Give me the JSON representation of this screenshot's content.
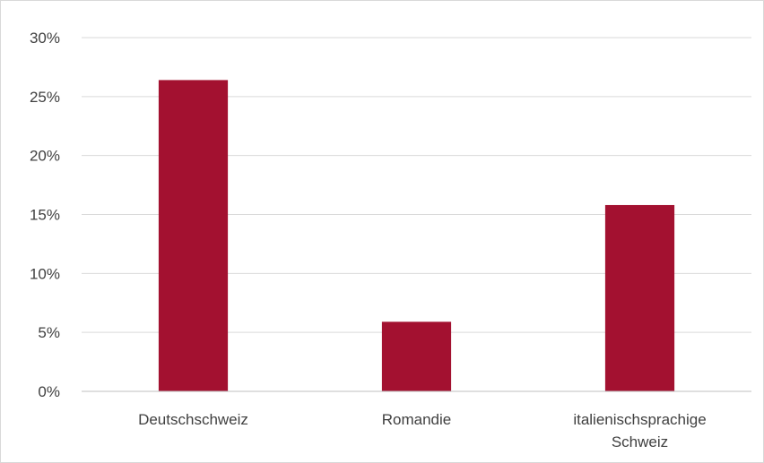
{
  "chart_data": {
    "type": "bar",
    "categories": [
      "Deutschschweiz",
      "Romandie",
      "italienischsprachige Schweiz"
    ],
    "category_lines": [
      [
        "Deutschschweiz"
      ],
      [
        "Romandie"
      ],
      [
        "italienischsprachige",
        "Schweiz"
      ]
    ],
    "values": [
      26.4,
      5.9,
      15.8
    ],
    "title": "",
    "xlabel": "",
    "ylabel": "",
    "ylim": [
      0,
      30
    ],
    "yticks": [
      0,
      5,
      10,
      15,
      20,
      25,
      30
    ],
    "ytick_labels": [
      "0%",
      "5%",
      "10%",
      "15%",
      "20%",
      "25%",
      "30%"
    ],
    "grid": true,
    "legend": "none",
    "bar_color": "#a31130",
    "grid_color": "#d9d9d9",
    "axis_color": "#bfbfbf",
    "text_color": "#404040"
  }
}
